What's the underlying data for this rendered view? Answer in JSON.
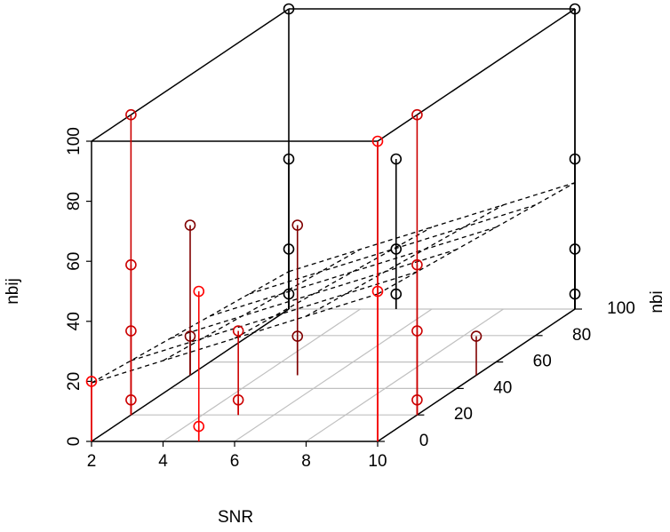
{
  "chart_data": {
    "type": "scatter3d",
    "xlabel": "SNR",
    "ylabel": "nbi",
    "zlabel": "nbij",
    "xlim": [
      2,
      10
    ],
    "ylim": [
      0,
      100
    ],
    "zlim": [
      0,
      100
    ],
    "xticks": [
      2,
      4,
      6,
      8,
      10
    ],
    "yticks": [
      0,
      20,
      40,
      60,
      80,
      100
    ],
    "zticks": [
      0,
      20,
      40,
      60,
      80,
      100
    ],
    "x": [
      2,
      2,
      2,
      2,
      2,
      2,
      2,
      2,
      2,
      2,
      2,
      5,
      5,
      5,
      5,
      5,
      5,
      5,
      5,
      5,
      10,
      10,
      10,
      10,
      10,
      10,
      10,
      10,
      10,
      10,
      10
    ],
    "y": [
      0,
      20,
      20,
      20,
      20,
      50,
      50,
      100,
      100,
      100,
      100,
      0,
      0,
      20,
      20,
      50,
      50,
      100,
      100,
      100,
      0,
      0,
      20,
      20,
      20,
      20,
      50,
      100,
      100,
      100,
      100
    ],
    "z": [
      20,
      100,
      50,
      28,
      5,
      50,
      13,
      100,
      50,
      20,
      5,
      50,
      5,
      28,
      5,
      50,
      13,
      50,
      20,
      5,
      100,
      50,
      100,
      50,
      28,
      5,
      13,
      100,
      50,
      20,
      5
    ],
    "color_range": [
      "#ff0000",
      "#000000"
    ],
    "drop_lines": true,
    "grid": true,
    "plane": {
      "intercept": 12.1,
      "x_coef": 3.7,
      "y_coef": -0.07
    }
  }
}
